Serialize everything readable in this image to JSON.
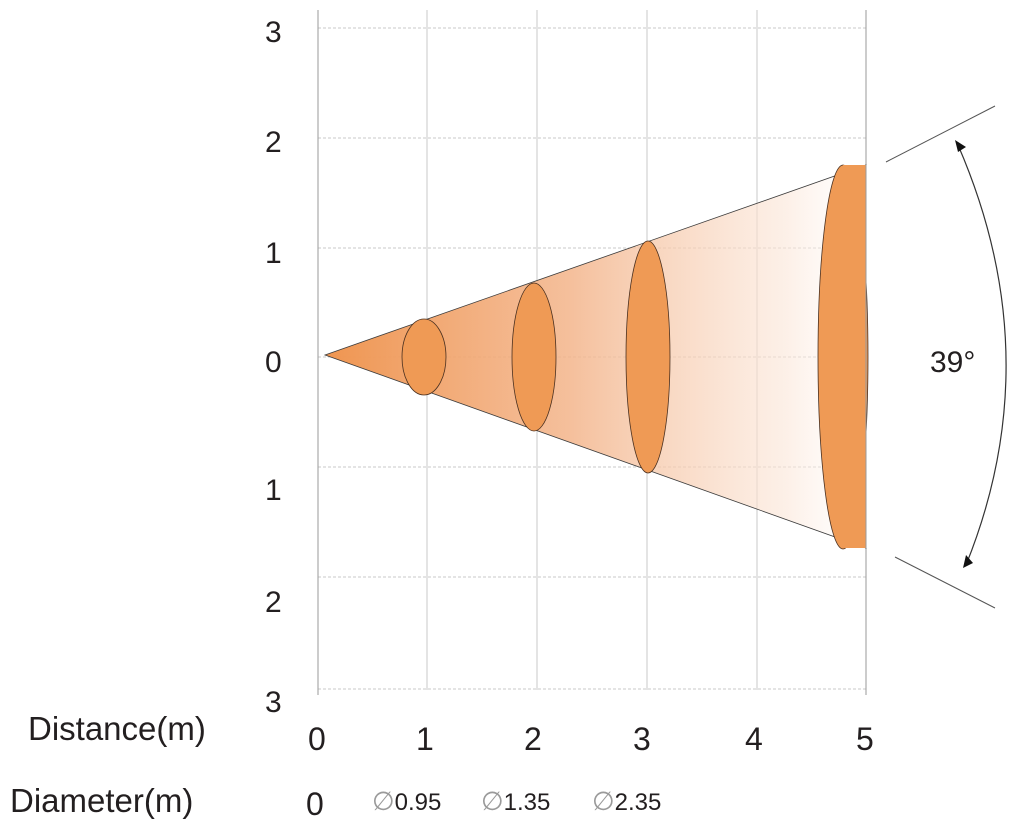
{
  "diagram": {
    "y_ticks": [
      "3",
      "2",
      "1",
      "0",
      "1",
      "2",
      "3"
    ],
    "x_ticks": [
      "0",
      "1",
      "2",
      "3",
      "4",
      "5"
    ],
    "distance_label": "Distance(m)",
    "diameter_label": "Diameter(m)",
    "diameters": [
      {
        "symbol": "∅",
        "value": "0"
      },
      {
        "symbol": "∅",
        "value": "0.95"
      },
      {
        "symbol": "∅",
        "value": "1.35"
      },
      {
        "symbol": "∅",
        "value": "2.35"
      }
    ],
    "diameter_zero": "0",
    "angle_label": "39°",
    "colors": {
      "cone": "#f19a56",
      "ellipse": "#ef9a55",
      "outline": "#5a3a20"
    }
  }
}
